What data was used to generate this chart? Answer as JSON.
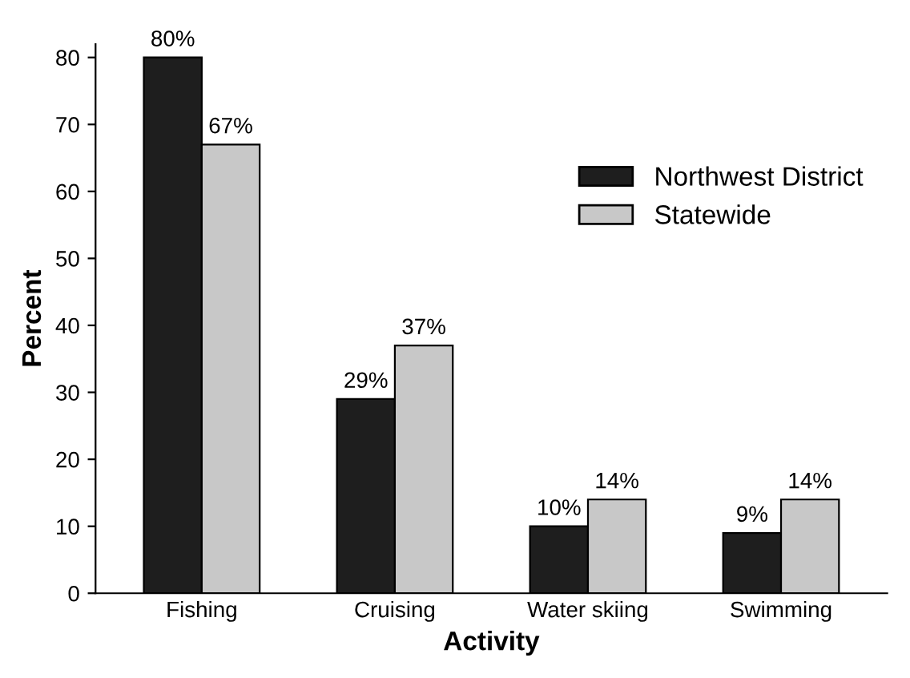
{
  "chart_data": {
    "type": "bar",
    "xlabel": "Activity",
    "ylabel": "Percent",
    "categories": [
      "Fishing",
      "Cruising",
      "Water skiing",
      "Swimming"
    ],
    "series": [
      {
        "name": "Northwest District",
        "color": "#1e1e1e",
        "values": [
          80,
          29,
          10,
          9
        ],
        "value_labels": [
          "80%",
          "29%",
          "10%",
          "9%"
        ]
      },
      {
        "name": "Statewide",
        "color": "#c8c8c8",
        "values": [
          67,
          37,
          14,
          14
        ],
        "value_labels": [
          "67%",
          "37%",
          "14%",
          "14%"
        ]
      }
    ],
    "ylim": [
      0,
      82
    ],
    "yticks": [
      0,
      10,
      20,
      30,
      40,
      50,
      60,
      70,
      80
    ],
    "grid": false,
    "legend": "right"
  }
}
